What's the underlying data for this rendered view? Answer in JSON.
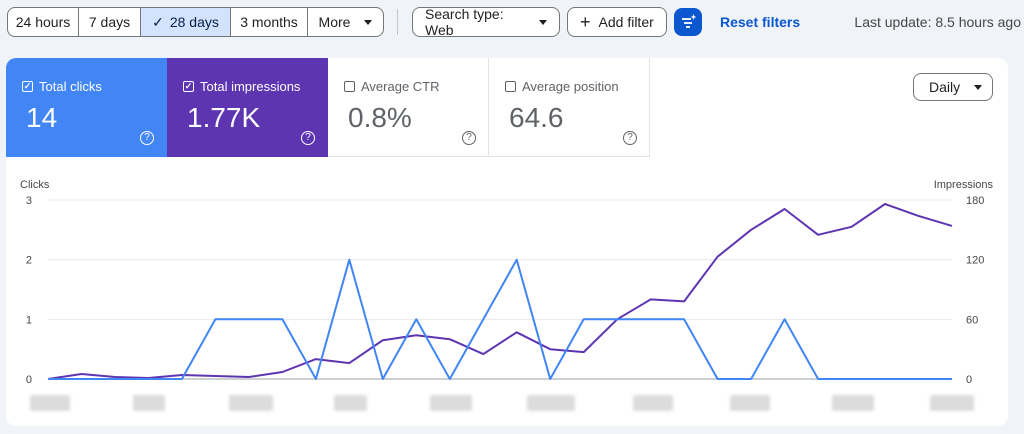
{
  "toolbar": {
    "ranges": [
      {
        "label": "24 hours",
        "active": false
      },
      {
        "label": "7 days",
        "active": false
      },
      {
        "label": "28 days",
        "active": true
      },
      {
        "label": "3 months",
        "active": false
      },
      {
        "label": "More",
        "active": false
      }
    ],
    "search_type": "Search type: Web",
    "add_filter": "Add filter",
    "reset_filters": "Reset filters",
    "last_update": "Last update: 8.5 hours ago"
  },
  "metrics": [
    {
      "label": "Total clicks",
      "value": "14",
      "checked": true
    },
    {
      "label": "Total impressions",
      "value": "1.77K",
      "checked": true
    },
    {
      "label": "Average CTR",
      "value": "0.8%",
      "checked": false
    },
    {
      "label": "Average position",
      "value": "64.6",
      "checked": false
    }
  ],
  "granularity": "Daily",
  "help_glyph": "?",
  "colors": {
    "clicks": "#4285f4",
    "impressions": "#5e35b1",
    "accent": "#0b57d0"
  },
  "chart_data": {
    "type": "line",
    "ylabel_left": "Clicks",
    "ylabel_right": "Impressions",
    "y_left_ticks": [
      "3",
      "2",
      "1",
      "0"
    ],
    "y_right_ticks": [
      "180",
      "120",
      "60",
      "0"
    ],
    "ylim_left": [
      0,
      3
    ],
    "ylim_right": [
      0,
      180
    ],
    "grid": true,
    "series": [
      {
        "name": "Clicks",
        "axis": "left",
        "values": [
          0,
          0,
          0,
          0,
          0,
          1,
          1,
          1,
          0,
          2,
          0,
          1,
          0,
          1,
          2,
          0,
          1,
          1,
          1,
          1,
          0,
          0,
          1,
          0,
          0,
          0,
          0,
          0
        ]
      },
      {
        "name": "Impressions",
        "axis": "right",
        "values": [
          0,
          5,
          2,
          1,
          4,
          3,
          2,
          7,
          20,
          16,
          39,
          44,
          40,
          25,
          47,
          30,
          27,
          60,
          80,
          78,
          123,
          150,
          171,
          145,
          153,
          176,
          164,
          154
        ]
      }
    ]
  }
}
